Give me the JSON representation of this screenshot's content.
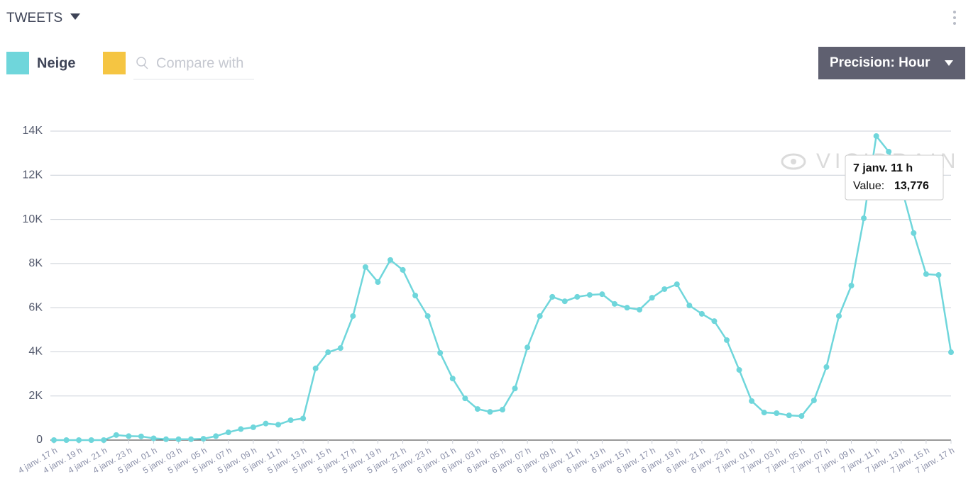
{
  "header": {
    "title": "TWEETS",
    "search_placeholder": "Compare with",
    "precision": "Precision: Hour"
  },
  "watermark": "VISIBRAIN",
  "chart_data": {
    "type": "line",
    "categories": [
      "4 janv. 17 h",
      null,
      "4 janv. 19 h",
      null,
      "4 janv. 21 h",
      null,
      "4 janv. 23 h",
      null,
      "5 janv. 01 h",
      null,
      "5 janv. 03 h",
      null,
      "5 janv. 05 h",
      null,
      "5 janv. 07 h",
      null,
      "5 janv. 09 h",
      null,
      "5 janv. 11 h",
      null,
      "5 janv. 13 h",
      null,
      "5 janv. 15 h",
      null,
      "5 janv. 17 h",
      null,
      "5 janv. 19 h",
      null,
      "5 janv. 21 h",
      null,
      "5 janv. 23 h",
      null,
      "6 janv. 01 h",
      null,
      "6 janv. 03 h",
      null,
      "6 janv. 05 h",
      null,
      "6 janv. 07 h",
      null,
      "6 janv. 09 h",
      null,
      "6 janv. 11 h",
      null,
      "6 janv. 13 h",
      null,
      "6 janv. 15 h",
      null,
      "6 janv. 17 h",
      null,
      "6 janv. 19 h",
      null,
      "6 janv. 21 h",
      null,
      "6 janv. 23 h",
      null,
      "7 janv. 01 h",
      null,
      "7 janv. 03 h",
      null,
      "7 janv. 05 h",
      null,
      "7 janv. 07 h",
      null,
      "7 janv. 09 h",
      null,
      "7 janv. 11 h",
      null,
      "7 janv. 13 h",
      null,
      "7 janv. 15 h",
      null,
      "7 janv. 17 h"
    ],
    "series": [
      {
        "name": "Neige",
        "color": "#6fd6db",
        "values": [
          0,
          0,
          0,
          0,
          0,
          230,
          180,
          170,
          80,
          40,
          40,
          40,
          60,
          180,
          350,
          500,
          580,
          750,
          700,
          900,
          980,
          3250,
          3980,
          4170,
          5620,
          7840,
          7160,
          8160,
          7710,
          6550,
          5620,
          3950,
          2790,
          1890,
          1410,
          1280,
          1380,
          2340,
          4200,
          5620,
          6490,
          6290,
          6490,
          6580,
          6610,
          6170,
          6000,
          5910,
          6450,
          6840,
          7060,
          6100,
          5720,
          5390,
          4530,
          3180,
          1770,
          1250,
          1220,
          1120,
          1090,
          1800,
          3310,
          5620,
          7000,
          10050,
          13776,
          13070,
          11500,
          9380,
          7520,
          7480,
          3980
        ]
      }
    ],
    "compare_color": "#f5c542",
    "ylim": [
      0,
      14000
    ],
    "yticks": [
      0,
      {
        "value": 2000,
        "label": "2K"
      },
      {
        "value": 4000,
        "label": "4K"
      },
      {
        "value": 6000,
        "label": "6K"
      },
      {
        "value": 8000,
        "label": "8K"
      },
      {
        "value": 10000,
        "label": "10K"
      },
      {
        "value": 12000,
        "label": "12K"
      },
      {
        "value": 14000,
        "label": "14K"
      }
    ],
    "grid": true,
    "tooltip": {
      "label": "Value:",
      "value": "13,776"
    }
  }
}
